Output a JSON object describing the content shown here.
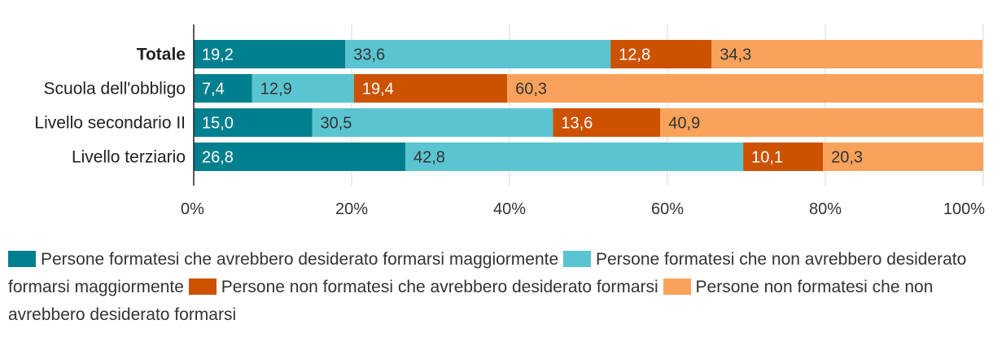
{
  "chart_data": {
    "type": "bar",
    "orientation": "horizontal",
    "stacked": true,
    "categories": [
      "Totale",
      "Scuola dell'obbligo",
      "Livello secondario II",
      "Livello terziario"
    ],
    "emphasized_categories": [
      "Totale"
    ],
    "series": [
      {
        "name": "Persone formatesi che avrebbero desiderato formarsi maggiormente",
        "color": "#007F8F",
        "label_color": "#ffffff",
        "values": [
          19.2,
          7.4,
          15.0,
          26.8
        ],
        "labels": [
          "19,2",
          "7,4",
          "15,0",
          "26,8"
        ]
      },
      {
        "name": "Persone formatesi che non avrebbero desiderato formarsi maggiormente",
        "color": "#5BC4D1",
        "label_color": "#333333",
        "values": [
          33.6,
          12.9,
          30.5,
          42.8
        ],
        "labels": [
          "33,6",
          "12,9",
          "30,5",
          "42,8"
        ]
      },
      {
        "name": "Persone non formatesi che avrebbero desiderato formarsi",
        "color": "#CC5200",
        "label_color": "#ffffff",
        "values": [
          12.8,
          19.4,
          13.6,
          10.1
        ],
        "labels": [
          "12,8",
          "19,4",
          "13,6",
          "10,1"
        ]
      },
      {
        "name": "Persone non formatesi che non avrebbero desiderato formarsi",
        "color": "#F9A25B",
        "label_color": "#333333",
        "values": [
          34.3,
          60.3,
          40.9,
          20.3
        ],
        "labels": [
          "34,3",
          "60,3",
          "40,9",
          "20,3"
        ]
      }
    ],
    "xlim": [
      0,
      100
    ],
    "x_ticks": [
      "0%",
      "20%",
      "40%",
      "60%",
      "80%",
      "100%"
    ],
    "grid": true,
    "legend_position": "bottom"
  }
}
